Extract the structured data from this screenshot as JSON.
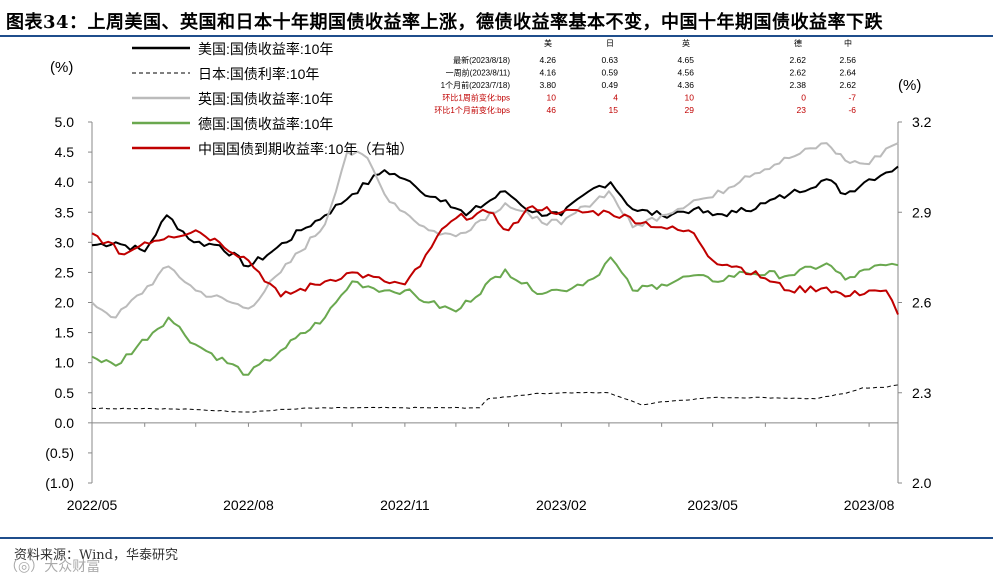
{
  "title": "图表34：上周美国、英国和日本十年期国债收益率上涨，德债收益率基本不变，中国十年期国债收益率下跌",
  "source": "资料来源：Wind，华泰研究",
  "watermark": "（◎）大众财富",
  "chart_data": {
    "type": "line",
    "left_unit": "(%)",
    "right_unit": "(%)",
    "yleft": {
      "min": -1.0,
      "max": 5.0,
      "ticks": [
        5.0,
        4.5,
        4.0,
        3.5,
        3.0,
        2.5,
        2.0,
        1.5,
        1.0,
        0.5,
        0.0,
        -0.5,
        -1.0
      ],
      "tick_labels": [
        "5.0",
        "4.5",
        "4.0",
        "3.5",
        "3.0",
        "2.5",
        "2.0",
        "1.5",
        "1.0",
        "0.5",
        "0.0",
        "(0.5)",
        "(1.0)"
      ]
    },
    "yright": {
      "min": 2.0,
      "max": 3.2,
      "ticks": [
        3.2,
        2.9,
        2.6,
        2.3,
        2.0
      ],
      "tick_labels": [
        "3.2",
        "2.9",
        "2.6",
        "2.3",
        "2.0"
      ]
    },
    "x": {
      "start": "2022-05-01",
      "end": "2023-08-18",
      "tick_dates": [
        "2022-05-01",
        "2022-08-01",
        "2022-11-01",
        "2023-02-01",
        "2023-05-01",
        "2023-08-01"
      ],
      "tick_labels": [
        "2022/05",
        "2022/08",
        "2022/11",
        "2023/02",
        "2023/05",
        "2023/08"
      ]
    },
    "series": [
      {
        "name": "美国:国债收益率:10年",
        "color": "#000000",
        "axis": "left",
        "dash": "",
        "points": [
          [
            "2022-05-01",
            2.95
          ],
          [
            "2022-05-15",
            3.0
          ],
          [
            "2022-06-01",
            2.85
          ],
          [
            "2022-06-14",
            3.45
          ],
          [
            "2022-06-30",
            3.0
          ],
          [
            "2022-07-15",
            2.95
          ],
          [
            "2022-08-01",
            2.6
          ],
          [
            "2022-08-15",
            2.85
          ],
          [
            "2022-09-01",
            3.2
          ],
          [
            "2022-09-15",
            3.45
          ],
          [
            "2022-10-01",
            3.8
          ],
          [
            "2022-10-20",
            4.2
          ],
          [
            "2022-11-01",
            4.05
          ],
          [
            "2022-11-10",
            3.85
          ],
          [
            "2022-11-25",
            3.7
          ],
          [
            "2022-12-07",
            3.45
          ],
          [
            "2022-12-30",
            3.85
          ],
          [
            "2023-01-15",
            3.5
          ],
          [
            "2023-02-01",
            3.45
          ],
          [
            "2023-02-20",
            3.9
          ],
          [
            "2023-03-02",
            4.0
          ],
          [
            "2023-03-15",
            3.55
          ],
          [
            "2023-04-01",
            3.45
          ],
          [
            "2023-04-20",
            3.55
          ],
          [
            "2023-05-01",
            3.45
          ],
          [
            "2023-05-15",
            3.5
          ],
          [
            "2023-06-01",
            3.65
          ],
          [
            "2023-06-15",
            3.8
          ],
          [
            "2023-07-07",
            4.05
          ],
          [
            "2023-07-18",
            3.8
          ],
          [
            "2023-08-01",
            4.05
          ],
          [
            "2023-08-11",
            4.16
          ],
          [
            "2023-08-18",
            4.26
          ]
        ]
      },
      {
        "name": "日本:国债利率:10年",
        "color": "#000000",
        "axis": "left",
        "dash": "4,3",
        "points": [
          [
            "2022-05-01",
            0.24
          ],
          [
            "2022-06-01",
            0.24
          ],
          [
            "2022-07-01",
            0.22
          ],
          [
            "2022-08-01",
            0.18
          ],
          [
            "2022-09-01",
            0.24
          ],
          [
            "2022-10-01",
            0.25
          ],
          [
            "2022-11-01",
            0.25
          ],
          [
            "2022-12-15",
            0.25
          ],
          [
            "2022-12-20",
            0.4
          ],
          [
            "2023-01-15",
            0.48
          ],
          [
            "2023-02-01",
            0.5
          ],
          [
            "2023-03-01",
            0.5
          ],
          [
            "2023-03-20",
            0.3
          ],
          [
            "2023-04-01",
            0.35
          ],
          [
            "2023-05-01",
            0.42
          ],
          [
            "2023-06-01",
            0.42
          ],
          [
            "2023-07-01",
            0.4
          ],
          [
            "2023-07-18",
            0.49
          ],
          [
            "2023-07-28",
            0.58
          ],
          [
            "2023-08-11",
            0.59
          ],
          [
            "2023-08-18",
            0.63
          ]
        ]
      },
      {
        "name": "英国:国债收益率:10年",
        "color": "#bbbbbb",
        "axis": "left",
        "dash": "",
        "points": [
          [
            "2022-05-01",
            2.0
          ],
          [
            "2022-05-15",
            1.75
          ],
          [
            "2022-06-15",
            2.6
          ],
          [
            "2022-07-01",
            2.2
          ],
          [
            "2022-08-01",
            1.9
          ],
          [
            "2022-08-20",
            2.5
          ],
          [
            "2022-09-15",
            3.3
          ],
          [
            "2022-09-28",
            4.5
          ],
          [
            "2022-10-10",
            4.4
          ],
          [
            "2022-10-20",
            3.8
          ],
          [
            "2022-11-01",
            3.5
          ],
          [
            "2022-11-15",
            3.2
          ],
          [
            "2022-12-01",
            3.1
          ],
          [
            "2022-12-30",
            3.65
          ],
          [
            "2023-01-15",
            3.4
          ],
          [
            "2023-02-01",
            3.3
          ],
          [
            "2023-02-15",
            3.6
          ],
          [
            "2023-03-01",
            3.85
          ],
          [
            "2023-03-15",
            3.25
          ],
          [
            "2023-04-01",
            3.45
          ],
          [
            "2023-04-20",
            3.7
          ],
          [
            "2023-05-01",
            3.75
          ],
          [
            "2023-05-20",
            4.1
          ],
          [
            "2023-06-15",
            4.4
          ],
          [
            "2023-07-07",
            4.65
          ],
          [
            "2023-07-18",
            4.36
          ],
          [
            "2023-08-01",
            4.3
          ],
          [
            "2023-08-11",
            4.56
          ],
          [
            "2023-08-18",
            4.65
          ]
        ]
      },
      {
        "name": "德国:国债收益率:10年",
        "color": "#6aa84f",
        "axis": "left",
        "dash": "",
        "points": [
          [
            "2022-05-01",
            1.1
          ],
          [
            "2022-05-15",
            0.95
          ],
          [
            "2022-06-15",
            1.75
          ],
          [
            "2022-07-01",
            1.3
          ],
          [
            "2022-08-01",
            0.8
          ],
          [
            "2022-08-20",
            1.2
          ],
          [
            "2022-09-15",
            1.75
          ],
          [
            "2022-10-01",
            2.35
          ],
          [
            "2022-10-20",
            2.2
          ],
          [
            "2022-11-01",
            2.2
          ],
          [
            "2022-11-15",
            2.0
          ],
          [
            "2022-12-01",
            1.85
          ],
          [
            "2022-12-30",
            2.55
          ],
          [
            "2023-01-15",
            2.2
          ],
          [
            "2023-02-01",
            2.2
          ],
          [
            "2023-02-20",
            2.4
          ],
          [
            "2023-03-02",
            2.75
          ],
          [
            "2023-03-15",
            2.2
          ],
          [
            "2023-04-01",
            2.3
          ],
          [
            "2023-04-20",
            2.45
          ],
          [
            "2023-05-01",
            2.35
          ],
          [
            "2023-05-20",
            2.5
          ],
          [
            "2023-06-15",
            2.45
          ],
          [
            "2023-07-07",
            2.65
          ],
          [
            "2023-07-18",
            2.38
          ],
          [
            "2023-08-01",
            2.55
          ],
          [
            "2023-08-11",
            2.62
          ],
          [
            "2023-08-18",
            2.62
          ]
        ]
      },
      {
        "name": "中国国债到期收益率:10年（右轴）",
        "color": "#c00000",
        "axis": "right",
        "dash": "",
        "points": [
          [
            "2022-05-01",
            2.83
          ],
          [
            "2022-05-20",
            2.76
          ],
          [
            "2022-06-01",
            2.8
          ],
          [
            "2022-06-15",
            2.82
          ],
          [
            "2022-07-01",
            2.84
          ],
          [
            "2022-07-15",
            2.8
          ],
          [
            "2022-08-01",
            2.74
          ],
          [
            "2022-08-20",
            2.62
          ],
          [
            "2022-09-15",
            2.67
          ],
          [
            "2022-10-01",
            2.7
          ],
          [
            "2022-10-20",
            2.67
          ],
          [
            "2022-11-01",
            2.66
          ],
          [
            "2022-11-10",
            2.72
          ],
          [
            "2022-11-20",
            2.82
          ],
          [
            "2022-12-01",
            2.88
          ],
          [
            "2022-12-20",
            2.9
          ],
          [
            "2023-01-01",
            2.84
          ],
          [
            "2023-01-15",
            2.92
          ],
          [
            "2023-02-01",
            2.9
          ],
          [
            "2023-03-01",
            2.9
          ],
          [
            "2023-04-01",
            2.85
          ],
          [
            "2023-04-20",
            2.83
          ],
          [
            "2023-05-01",
            2.74
          ],
          [
            "2023-05-15",
            2.72
          ],
          [
            "2023-06-01",
            2.68
          ],
          [
            "2023-06-15",
            2.64
          ],
          [
            "2023-07-07",
            2.65
          ],
          [
            "2023-07-18",
            2.62
          ],
          [
            "2023-08-01",
            2.64
          ],
          [
            "2023-08-11",
            2.64
          ],
          [
            "2023-08-18",
            2.56
          ]
        ]
      }
    ],
    "legend_position": "top-left",
    "table": {
      "columns": [
        "美",
        "日",
        "英",
        "德",
        "中"
      ],
      "rows": [
        {
          "label": "最新(2023/8/18)",
          "values": [
            "4.26",
            "0.63",
            "4.65",
            "2.62",
            "2.56"
          ],
          "color": "#000000"
        },
        {
          "label": "一周前(2023/8/11)",
          "values": [
            "4.16",
            "0.59",
            "4.56",
            "2.62",
            "2.64"
          ],
          "color": "#000000"
        },
        {
          "label": "1个月前(2023/7/18)",
          "values": [
            "3.80",
            "0.49",
            "4.36",
            "2.38",
            "2.62"
          ],
          "color": "#000000"
        },
        {
          "label": "环比1周前变化:bps",
          "values": [
            "10",
            "4",
            "10",
            "0",
            "-7"
          ],
          "color": "#c00000"
        },
        {
          "label": "环比1个月前变化:bps",
          "values": [
            "46",
            "15",
            "29",
            "23",
            "-6"
          ],
          "color": "#c00000"
        }
      ]
    }
  }
}
